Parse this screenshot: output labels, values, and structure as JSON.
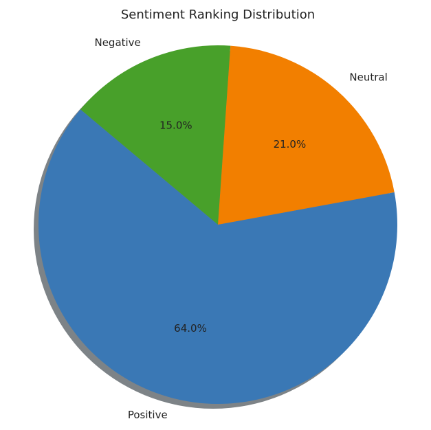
{
  "chart_data": {
    "type": "pie",
    "title": "Sentiment Ranking Distribution",
    "slices": [
      {
        "label": "Positive",
        "value": 64.0,
        "pct_label": "64.0%",
        "color": "#3a78b5"
      },
      {
        "label": "Neutral",
        "value": 21.0,
        "pct_label": "21.0%",
        "color": "#f27f00"
      },
      {
        "label": "Negative",
        "value": 15.0,
        "pct_label": "15.0%",
        "color": "#48a02a"
      }
    ],
    "start_angle": 140,
    "counterclock": true,
    "shadow": true,
    "shadow_color": "#7d8387"
  }
}
